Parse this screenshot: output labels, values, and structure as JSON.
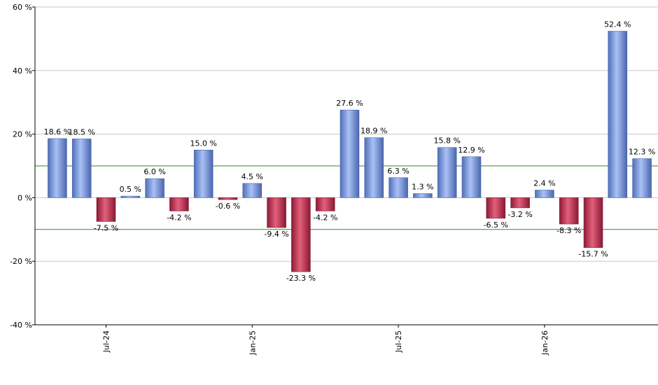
{
  "chart_data": {
    "type": "bar",
    "title": "",
    "xlabel": "",
    "ylabel": "",
    "ylim": [
      -40,
      60
    ],
    "y_ticks": [
      -40,
      -20,
      0,
      20,
      40,
      60
    ],
    "y_tick_labels": [
      "-40 %",
      "-20 %",
      "0 %",
      "20 %",
      "40 %",
      "60 %"
    ],
    "x_tick_labels": [
      {
        "label": "Jul-24",
        "bar_index": 2
      },
      {
        "label": "Jan-25",
        "bar_index": 8
      },
      {
        "label": "Jul-25",
        "bar_index": 14
      },
      {
        "label": "Jan-26",
        "bar_index": 20
      }
    ],
    "values": [
      18.6,
      18.5,
      -7.5,
      0.5,
      6.0,
      -4.2,
      15.0,
      -0.6,
      4.5,
      -9.4,
      -23.3,
      -4.2,
      27.6,
      18.9,
      6.3,
      1.3,
      15.8,
      12.9,
      -6.5,
      -3.2,
      2.4,
      -8.3,
      -15.7,
      52.4,
      12.3
    ],
    "value_labels": [
      "18.6 %",
      "18.5 %",
      "-7.5 %",
      "0.5 %",
      "6.0 %",
      "-4.2 %",
      "15.0 %",
      "-0.6 %",
      "4.5 %",
      "-9.4 %",
      "-23.3 %",
      "-4.2 %",
      "27.6 %",
      "18.9 %",
      "6.3 %",
      "1.3 %",
      "15.8 %",
      "12.9 %",
      "-6.5 %",
      "-3.2 %",
      "2.4 %",
      "-8.3 %",
      "-15.7 %",
      "52.4 %",
      "12.3 %"
    ],
    "reference_lines": [
      10,
      -10
    ],
    "grid": true,
    "colors": {
      "positive": "#7f9ee0",
      "negative": "#c8304f",
      "reference_line": "#2e8b2e",
      "grid": "#c8c8c8",
      "axis": "#000000"
    }
  }
}
